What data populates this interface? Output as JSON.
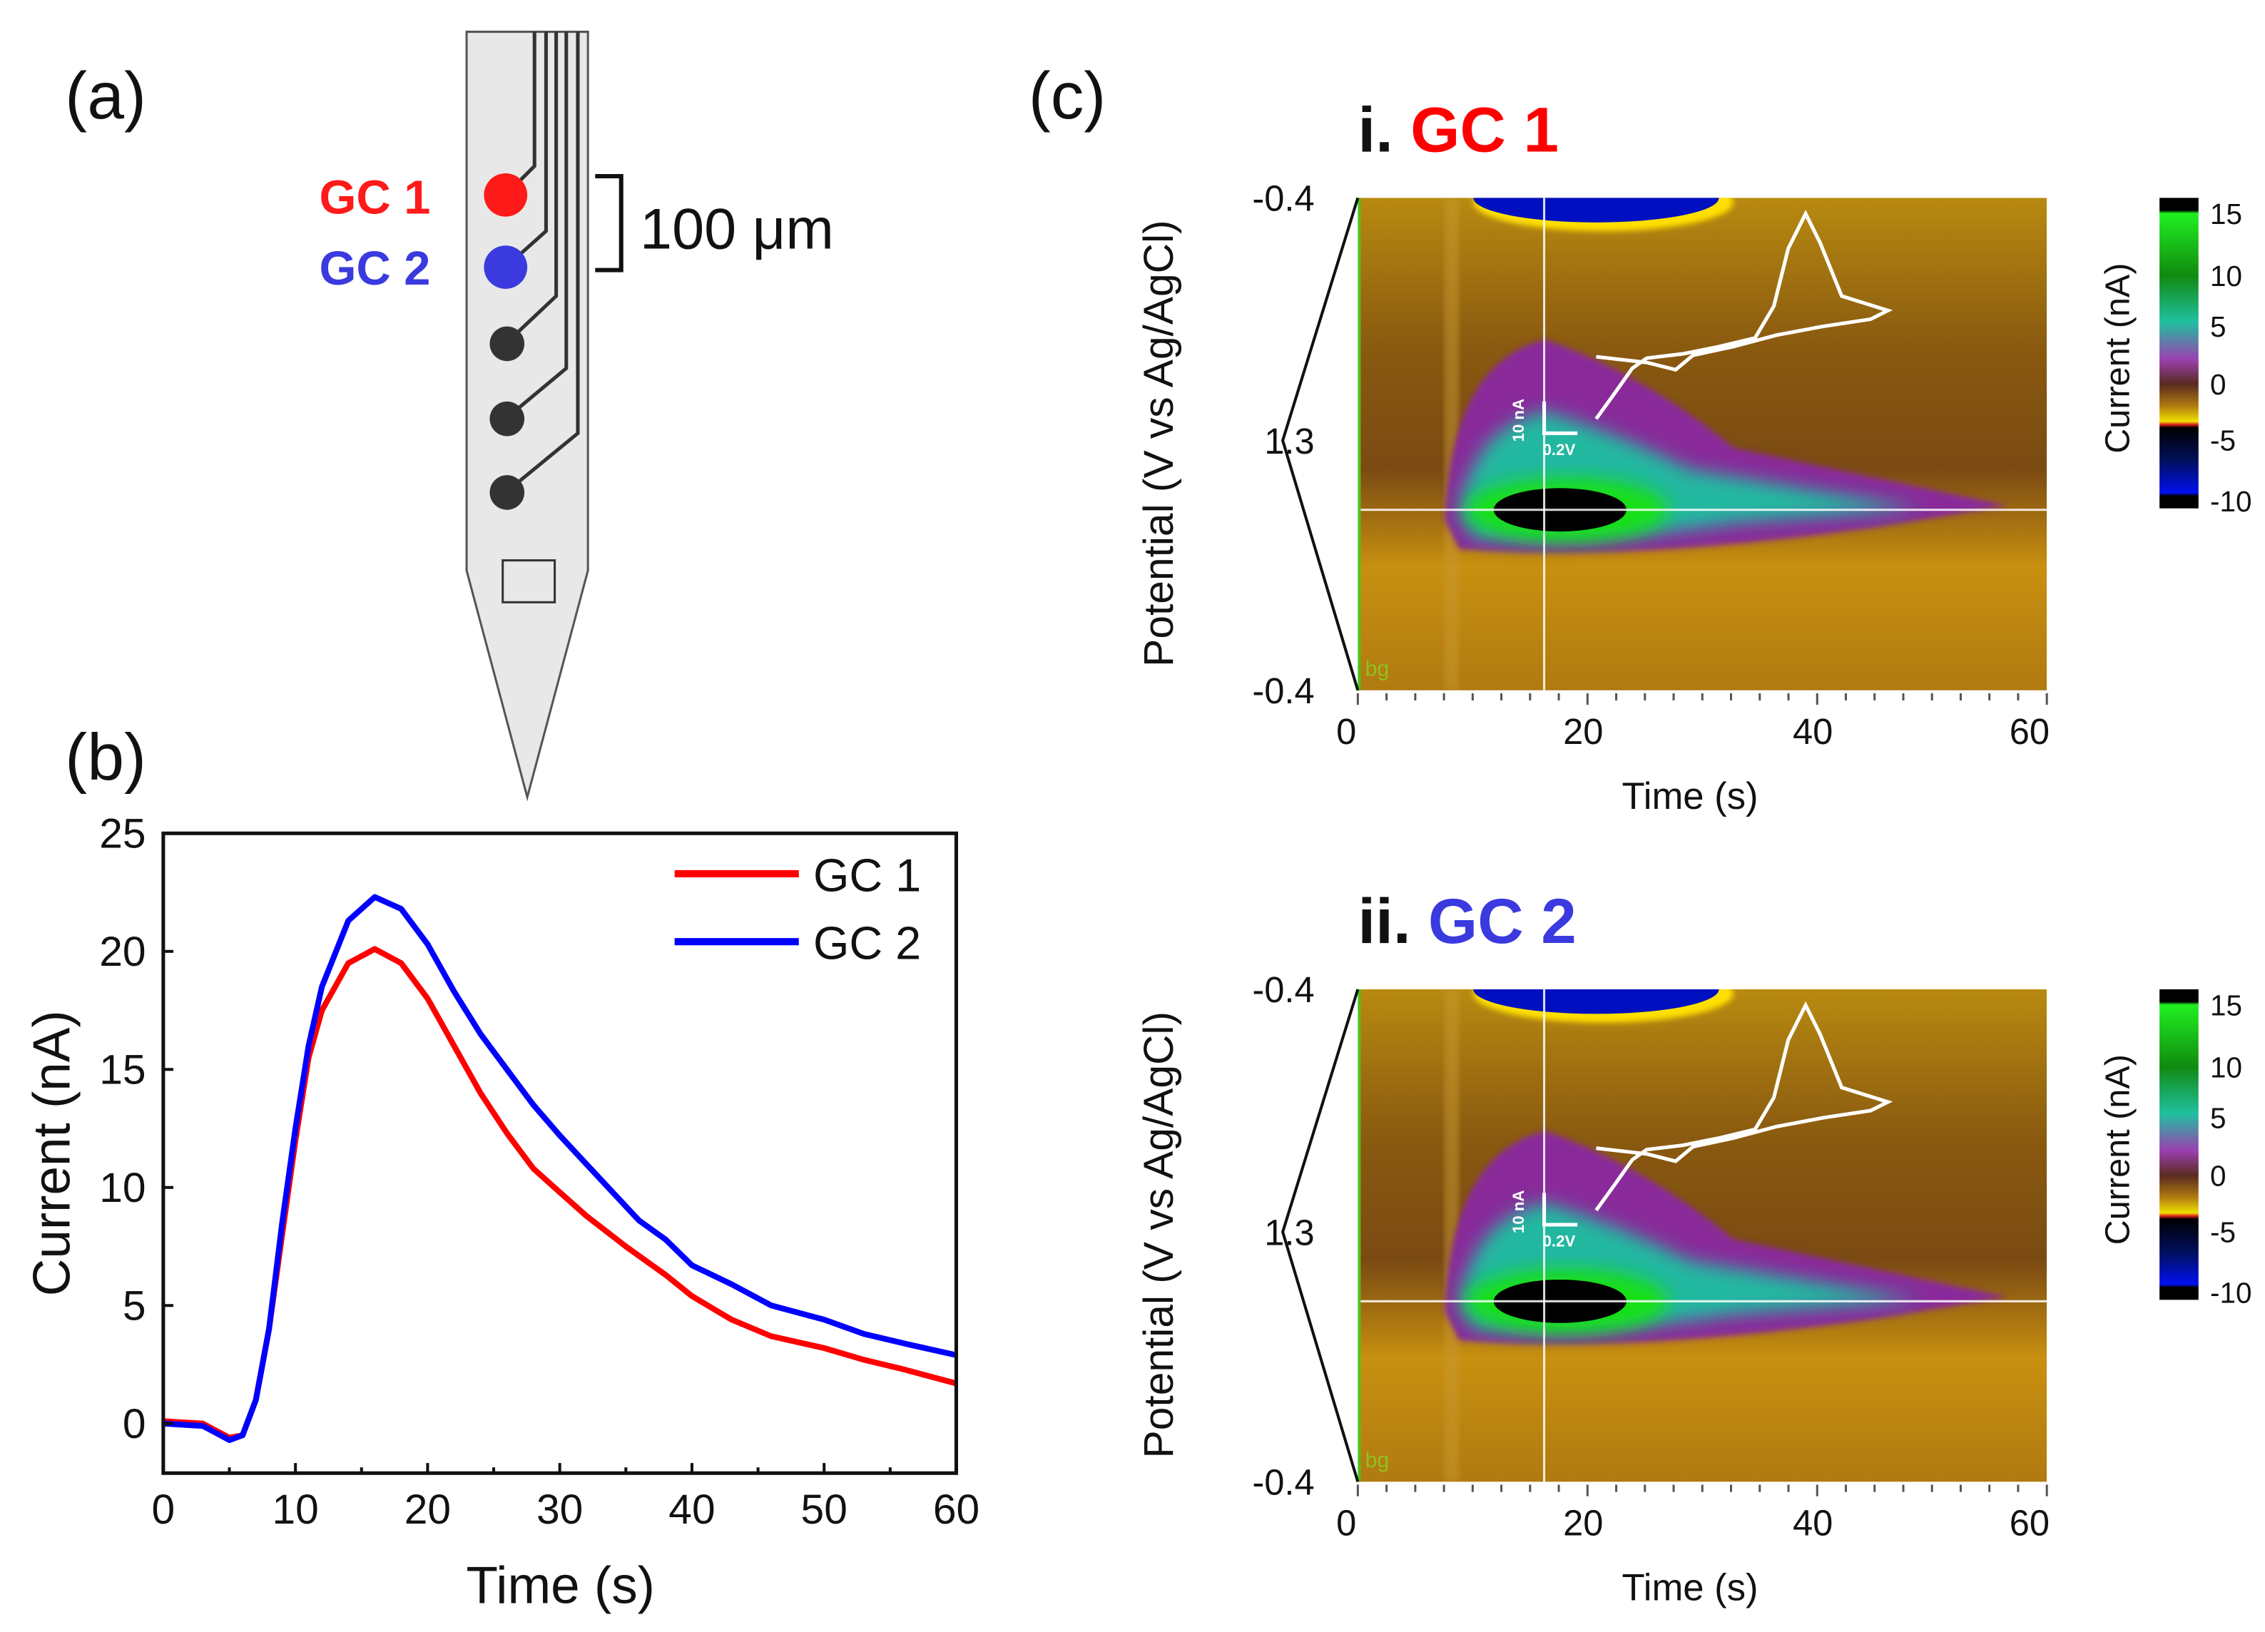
{
  "panel_labels": {
    "a": "(a)",
    "b": "(b)",
    "c": "(c)"
  },
  "probe": {
    "electrodes": [
      {
        "label": "GC 1",
        "color": "#ff1a1a"
      },
      {
        "label": "GC 2",
        "color": "#3a3adf"
      }
    ],
    "scale_label": "100 μm"
  },
  "chart_data": [
    {
      "type": "line",
      "panel": "(b)",
      "xlabel": "Time (s)",
      "ylabel": "Current (nA)",
      "xlim": [
        0,
        60
      ],
      "ylim": [
        -2.1,
        25
      ],
      "xticks": [
        0,
        10,
        20,
        30,
        40,
        50,
        60
      ],
      "yticks": [
        0,
        5,
        10,
        15,
        20,
        25
      ],
      "legend": "top-right",
      "series": [
        {
          "name": "GC 1",
          "color": "#ff0000",
          "x": [
            0,
            3,
            5,
            6,
            7,
            8,
            9,
            10,
            11,
            12,
            14,
            16,
            18,
            20,
            22,
            24,
            26,
            28,
            30,
            32,
            35,
            38,
            40,
            43,
            46,
            50,
            53,
            56,
            60
          ],
          "y": [
            0.1,
            0,
            -0.6,
            -0.5,
            1,
            4,
            8,
            12,
            15.5,
            17.5,
            19.5,
            20.1,
            19.5,
            18,
            16,
            14,
            12.3,
            10.8,
            9.8,
            8.8,
            7.5,
            6.3,
            5.4,
            4.4,
            3.7,
            3.2,
            2.7,
            2.3,
            1.7
          ]
        },
        {
          "name": "GC 2",
          "color": "#0000ff",
          "x": [
            0,
            3,
            5,
            6,
            7,
            8,
            9,
            10,
            11,
            12,
            14,
            16,
            18,
            20,
            22,
            24,
            26,
            28,
            30,
            32,
            34,
            36,
            38,
            40,
            43,
            46,
            50,
            53,
            56,
            60
          ],
          "y": [
            0,
            -0.1,
            -0.7,
            -0.5,
            1,
            4,
            8.5,
            12.5,
            16,
            18.5,
            21.3,
            22.3,
            21.8,
            20.3,
            18.3,
            16.5,
            15,
            13.5,
            12.2,
            11,
            9.8,
            8.6,
            7.8,
            6.7,
            5.9,
            5,
            4.4,
            3.8,
            3.4,
            2.9
          ]
        }
      ]
    },
    {
      "type": "heatmap",
      "panel": "(c) i",
      "title_prefix": "i.",
      "title": "GC 1",
      "title_color": "#ff0000",
      "xlabel": "Time (s)",
      "ylabel": "Potential (V vs Ag/AgCl)",
      "xticks": [
        "0",
        "20",
        "40",
        "60"
      ],
      "yticks": [
        "-0.4",
        "1.3",
        "-0.4"
      ],
      "colorbar": {
        "label": "Current (nA)",
        "ticks": [
          "15",
          "10",
          "5",
          "0",
          "-5",
          "-10"
        ]
      },
      "inset": {
        "current_scale": "10 nA",
        "potential_scale": "0.2V"
      },
      "bg_label": "bg",
      "peak_time_s": 16.5
    },
    {
      "type": "heatmap",
      "panel": "(c) ii",
      "title_prefix": "ii.",
      "title": "GC 2",
      "title_color": "#3a3adf",
      "xlabel": "Time (s)",
      "ylabel": "Potential (V vs Ag/AgCl)",
      "xticks": [
        "0",
        "20",
        "40",
        "60"
      ],
      "yticks": [
        "-0.4",
        "1.3",
        "-0.4"
      ],
      "colorbar": {
        "label": "Current (nA)",
        "ticks": [
          "15",
          "10",
          "5",
          "0",
          "-5",
          "-10"
        ]
      },
      "inset": {
        "current_scale": "10 nA",
        "potential_scale": "0.2V"
      },
      "bg_label": "bg",
      "peak_time_s": 16.5
    }
  ]
}
